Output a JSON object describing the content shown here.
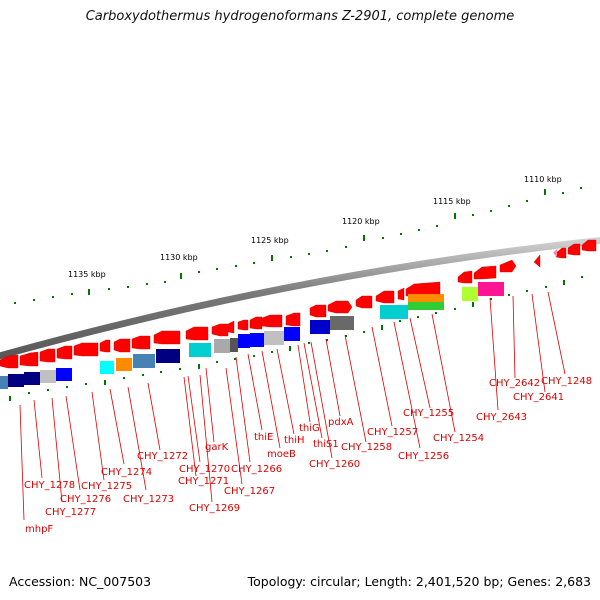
{
  "title": "Carboxydothermus hydrogenoformans Z-2901, complete genome",
  "footer": {
    "accession": "Accession: NC_007503",
    "stats": "Topology: circular; Length: 2,401,520 bp; Genes: 2,683"
  },
  "kbp_labels": [
    "1110 kbp",
    "1115 kbp",
    "1120 kbp",
    "1125 kbp",
    "1130 kbp",
    "1135 kbp"
  ],
  "gene_labels": [
    "CHY_1248",
    "CHY_2641",
    "CHY_2642",
    "CHY_2643",
    "CHY_1254",
    "CHY_1255",
    "CHY_1256",
    "CHY_1257",
    "CHY_1258",
    "pdxA",
    "CHY_1260",
    "thiS1",
    "thiG",
    "thiH",
    "moeB",
    "thiE",
    "CHY_1266",
    "CHY_1267",
    "garK",
    "CHY_1269",
    "CHY_1270",
    "CHY_1271",
    "CHY_1272",
    "CHY_1273",
    "CHY_1274",
    "CHY_1275",
    "CHY_1276",
    "CHY_1277",
    "CHY_1278",
    "mhpF"
  ],
  "colors": {
    "gene": "#ff0000",
    "label": "#dd0000",
    "tick": "#007700",
    "backbone": "#888888"
  }
}
